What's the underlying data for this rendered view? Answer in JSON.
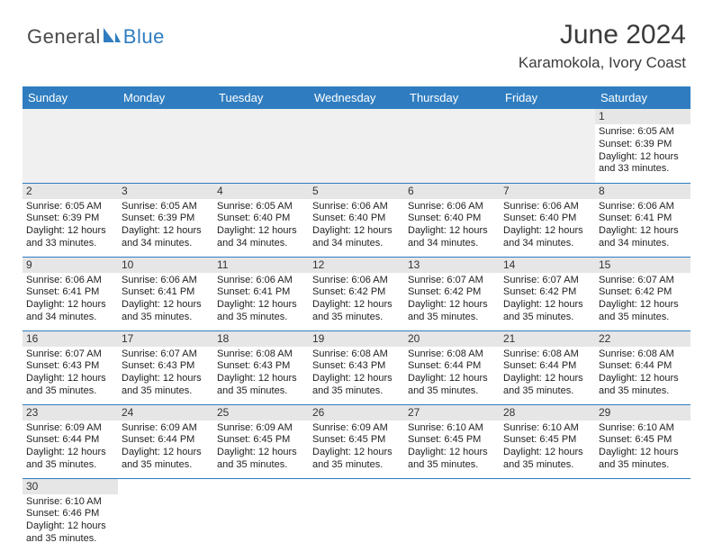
{
  "logo": {
    "text1": "General",
    "text2": "Blue"
  },
  "title": "June 2024",
  "location": "Karamokola, Ivory Coast",
  "weekdays": [
    "Sunday",
    "Monday",
    "Tuesday",
    "Wednesday",
    "Thursday",
    "Friday",
    "Saturday"
  ],
  "colors": {
    "header_bg": "#2f7dc0",
    "header_text": "#ffffff",
    "daynum_bg": "#e6e6e6",
    "border": "#2f7dc0",
    "title_color": "#3b3b3b"
  },
  "leadingBlanks": 6,
  "days": [
    {
      "n": "1",
      "sunrise": "6:05 AM",
      "sunset": "6:39 PM",
      "daylight": "12 hours and 33 minutes."
    },
    {
      "n": "2",
      "sunrise": "6:05 AM",
      "sunset": "6:39 PM",
      "daylight": "12 hours and 33 minutes."
    },
    {
      "n": "3",
      "sunrise": "6:05 AM",
      "sunset": "6:39 PM",
      "daylight": "12 hours and 34 minutes."
    },
    {
      "n": "4",
      "sunrise": "6:05 AM",
      "sunset": "6:40 PM",
      "daylight": "12 hours and 34 minutes."
    },
    {
      "n": "5",
      "sunrise": "6:06 AM",
      "sunset": "6:40 PM",
      "daylight": "12 hours and 34 minutes."
    },
    {
      "n": "6",
      "sunrise": "6:06 AM",
      "sunset": "6:40 PM",
      "daylight": "12 hours and 34 minutes."
    },
    {
      "n": "7",
      "sunrise": "6:06 AM",
      "sunset": "6:40 PM",
      "daylight": "12 hours and 34 minutes."
    },
    {
      "n": "8",
      "sunrise": "6:06 AM",
      "sunset": "6:41 PM",
      "daylight": "12 hours and 34 minutes."
    },
    {
      "n": "9",
      "sunrise": "6:06 AM",
      "sunset": "6:41 PM",
      "daylight": "12 hours and 34 minutes."
    },
    {
      "n": "10",
      "sunrise": "6:06 AM",
      "sunset": "6:41 PM",
      "daylight": "12 hours and 35 minutes."
    },
    {
      "n": "11",
      "sunrise": "6:06 AM",
      "sunset": "6:41 PM",
      "daylight": "12 hours and 35 minutes."
    },
    {
      "n": "12",
      "sunrise": "6:06 AM",
      "sunset": "6:42 PM",
      "daylight": "12 hours and 35 minutes."
    },
    {
      "n": "13",
      "sunrise": "6:07 AM",
      "sunset": "6:42 PM",
      "daylight": "12 hours and 35 minutes."
    },
    {
      "n": "14",
      "sunrise": "6:07 AM",
      "sunset": "6:42 PM",
      "daylight": "12 hours and 35 minutes."
    },
    {
      "n": "15",
      "sunrise": "6:07 AM",
      "sunset": "6:42 PM",
      "daylight": "12 hours and 35 minutes."
    },
    {
      "n": "16",
      "sunrise": "6:07 AM",
      "sunset": "6:43 PM",
      "daylight": "12 hours and 35 minutes."
    },
    {
      "n": "17",
      "sunrise": "6:07 AM",
      "sunset": "6:43 PM",
      "daylight": "12 hours and 35 minutes."
    },
    {
      "n": "18",
      "sunrise": "6:08 AM",
      "sunset": "6:43 PM",
      "daylight": "12 hours and 35 minutes."
    },
    {
      "n": "19",
      "sunrise": "6:08 AM",
      "sunset": "6:43 PM",
      "daylight": "12 hours and 35 minutes."
    },
    {
      "n": "20",
      "sunrise": "6:08 AM",
      "sunset": "6:44 PM",
      "daylight": "12 hours and 35 minutes."
    },
    {
      "n": "21",
      "sunrise": "6:08 AM",
      "sunset": "6:44 PM",
      "daylight": "12 hours and 35 minutes."
    },
    {
      "n": "22",
      "sunrise": "6:08 AM",
      "sunset": "6:44 PM",
      "daylight": "12 hours and 35 minutes."
    },
    {
      "n": "23",
      "sunrise": "6:09 AM",
      "sunset": "6:44 PM",
      "daylight": "12 hours and 35 minutes."
    },
    {
      "n": "24",
      "sunrise": "6:09 AM",
      "sunset": "6:44 PM",
      "daylight": "12 hours and 35 minutes."
    },
    {
      "n": "25",
      "sunrise": "6:09 AM",
      "sunset": "6:45 PM",
      "daylight": "12 hours and 35 minutes."
    },
    {
      "n": "26",
      "sunrise": "6:09 AM",
      "sunset": "6:45 PM",
      "daylight": "12 hours and 35 minutes."
    },
    {
      "n": "27",
      "sunrise": "6:10 AM",
      "sunset": "6:45 PM",
      "daylight": "12 hours and 35 minutes."
    },
    {
      "n": "28",
      "sunrise": "6:10 AM",
      "sunset": "6:45 PM",
      "daylight": "12 hours and 35 minutes."
    },
    {
      "n": "29",
      "sunrise": "6:10 AM",
      "sunset": "6:45 PM",
      "daylight": "12 hours and 35 minutes."
    },
    {
      "n": "30",
      "sunrise": "6:10 AM",
      "sunset": "6:46 PM",
      "daylight": "12 hours and 35 minutes."
    }
  ],
  "labels": {
    "sunrise": "Sunrise:",
    "sunset": "Sunset:",
    "daylight": "Daylight:"
  }
}
